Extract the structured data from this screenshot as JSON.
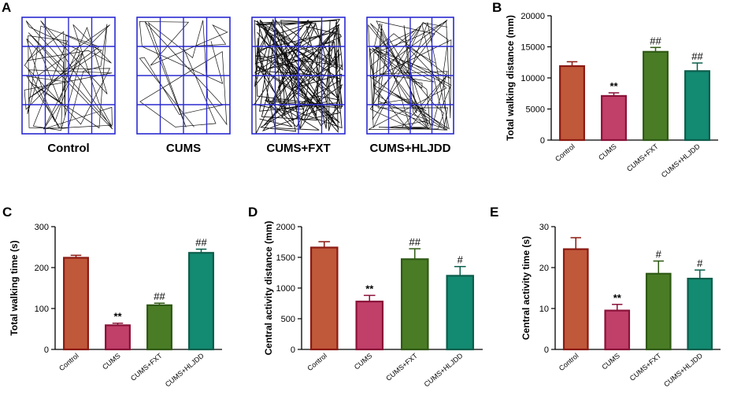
{
  "panel_a": {
    "letter": "A",
    "groups": [
      "Control",
      "CUMS",
      "CUMS+FXT",
      "CUMS+HLJDD"
    ]
  },
  "colors": {
    "Control": "#c0583a",
    "CUMS": "#c0406a",
    "CUMS+FXT": "#4a7c26",
    "CUMS+HLJDD": "#138a72",
    "Control_edge": "#8b1a12",
    "CUMS_edge": "#8a1238",
    "CUMS+FXT_edge": "#2f5a14",
    "CUMS+HLJDD_edge": "#0b5e4c",
    "grid": "#2a2ad0",
    "track": "#111111"
  },
  "chart_data": [
    {
      "panel": "B",
      "type": "bar",
      "categories": [
        "Control",
        "CUMS",
        "CUMS+FXT",
        "CUMS+HLJDD"
      ],
      "values": [
        11900,
        7100,
        14200,
        11100
      ],
      "errors": [
        700,
        500,
        700,
        1300
      ],
      "significance": [
        "",
        "**",
        "##",
        "##"
      ],
      "ylabel": "Total walking distance (mm)",
      "ylim": [
        0,
        20000
      ],
      "yticks": [
        0,
        5000,
        10000,
        15000,
        20000
      ]
    },
    {
      "panel": "C",
      "type": "bar",
      "categories": [
        "Control",
        "CUMS",
        "CUMS+FXT",
        "CUMS+HLJDD"
      ],
      "values": [
        224,
        59,
        108,
        236
      ],
      "errors": [
        6,
        5,
        5,
        9
      ],
      "significance": [
        "",
        "**",
        "##",
        "##"
      ],
      "ylabel": "Total walking time (s)",
      "ylim": [
        0,
        300
      ],
      "yticks": [
        0,
        100,
        200,
        300
      ]
    },
    {
      "panel": "D",
      "type": "bar",
      "categories": [
        "Control",
        "CUMS",
        "CUMS+FXT",
        "CUMS+HLJDD"
      ],
      "values": [
        1660,
        780,
        1470,
        1200
      ],
      "errors": [
        95,
        100,
        170,
        150
      ],
      "significance": [
        "",
        "**",
        "##",
        "#"
      ],
      "ylabel": "Central activity distance (mm)",
      "ylim": [
        0,
        2000
      ],
      "yticks": [
        0,
        500,
        1000,
        1500,
        2000
      ]
    },
    {
      "panel": "E",
      "type": "bar",
      "categories": [
        "Control",
        "CUMS",
        "CUMS+FXT",
        "CUMS+HLJDD"
      ],
      "values": [
        24.5,
        9.5,
        18.5,
        17.3
      ],
      "errors": [
        2.8,
        1.5,
        3.1,
        2.1
      ],
      "significance": [
        "",
        "**",
        "#",
        "#"
      ],
      "ylabel": "Central activity time (s)",
      "ylim": [
        0,
        30
      ],
      "yticks": [
        0,
        10,
        20,
        30
      ]
    }
  ]
}
